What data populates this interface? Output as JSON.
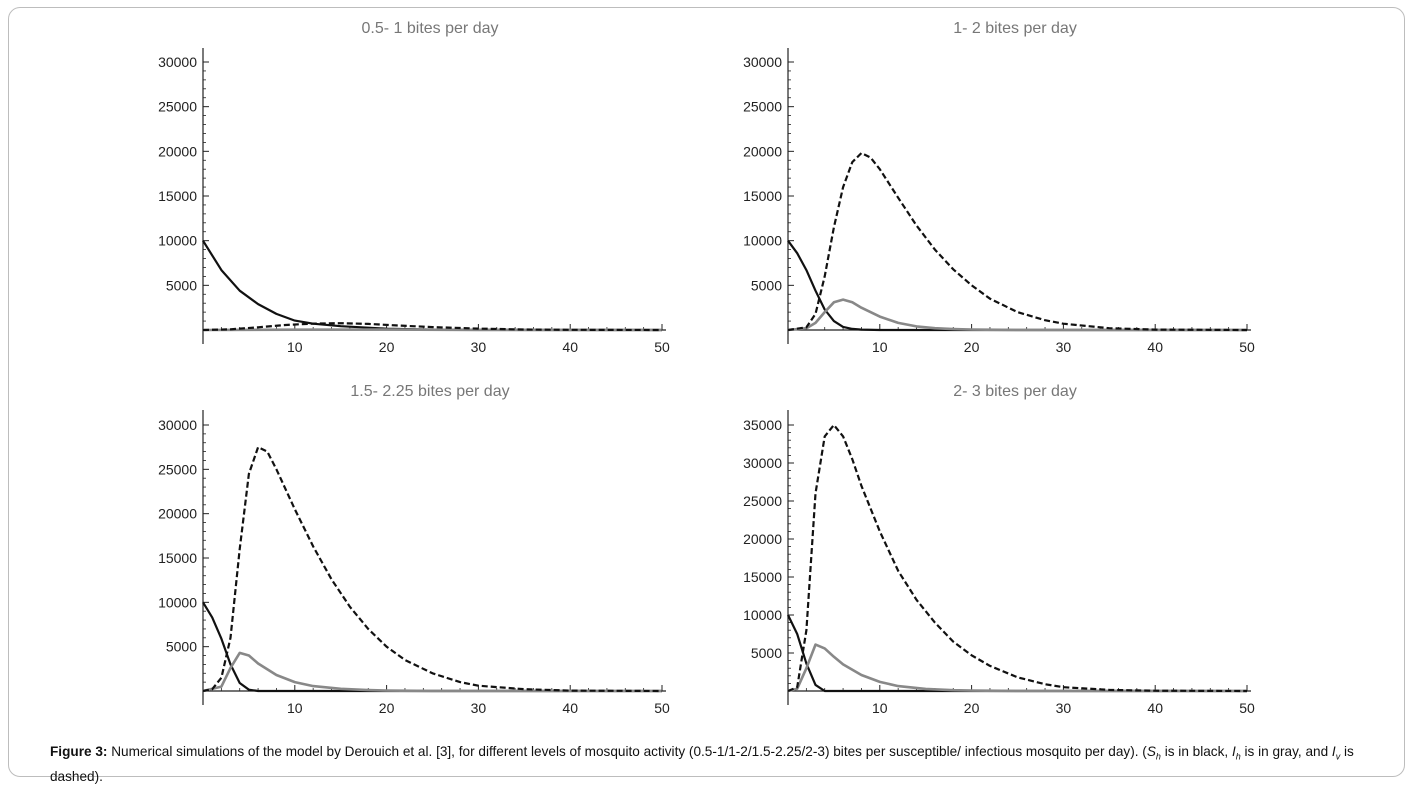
{
  "figure": {
    "caption_label": "Figure 3:",
    "caption_text": "Numerical simulations of the model by Derouich et al. [3], for different levels of mosquito activity (0.5-1/1-2/1.5-2.25/2-3) bites per susceptible/ infectious mosquito per day). (",
    "caption_sh": "S",
    "caption_sh_sub": "h",
    "caption_mid1": " is in black, ",
    "caption_ih": "I",
    "caption_ih_sub": "h",
    "caption_mid2": " is in gray, and ",
    "caption_iv": "I",
    "caption_iv_sub": "v",
    "caption_end": " is dashed).",
    "colors": {
      "S_h": "#111111",
      "I_h": "#888888",
      "I_v": "#111111",
      "axis": "#222222",
      "title": "#777777"
    }
  },
  "chart_data": [
    {
      "type": "line",
      "title": "0.5- 1 bites per day",
      "xlim": [
        0,
        50
      ],
      "ylim": [
        0,
        30000
      ],
      "xticks": [
        10,
        20,
        30,
        40,
        50
      ],
      "yticks": [
        5000,
        10000,
        15000,
        20000,
        25000,
        30000
      ],
      "series": [
        {
          "style": "solid-black",
          "x": [
            0,
            2,
            4,
            6,
            8,
            10,
            12,
            15,
            20,
            25,
            30,
            40,
            50
          ],
          "y": [
            10000,
            6700,
            4400,
            2900,
            1800,
            1050,
            700,
            420,
            150,
            50,
            20,
            0,
            0
          ]
        },
        {
          "style": "solid-gray",
          "x": [
            0,
            10,
            20,
            30,
            50
          ],
          "y": [
            0,
            30,
            40,
            10,
            0
          ]
        },
        {
          "style": "dashed-black",
          "x": [
            0,
            3,
            6,
            9,
            12,
            15,
            18,
            21,
            25,
            30,
            35,
            40,
            50
          ],
          "y": [
            0,
            80,
            300,
            560,
            720,
            760,
            680,
            520,
            330,
            160,
            60,
            20,
            0
          ]
        }
      ]
    },
    {
      "type": "line",
      "title": "1- 2 bites per day",
      "xlim": [
        0,
        50
      ],
      "ylim": [
        0,
        30000
      ],
      "xticks": [
        10,
        20,
        30,
        40,
        50
      ],
      "yticks": [
        5000,
        10000,
        15000,
        20000,
        25000,
        30000
      ],
      "series": [
        {
          "style": "solid-black",
          "x": [
            0,
            1,
            2,
            3,
            4,
            5,
            6,
            7,
            8,
            10,
            50
          ],
          "y": [
            10000,
            8600,
            6700,
            4400,
            2300,
            1000,
            350,
            120,
            40,
            0,
            0
          ]
        },
        {
          "style": "solid-gray",
          "x": [
            0,
            2,
            3,
            4,
            5,
            6,
            7,
            8,
            10,
            12,
            14,
            16,
            18,
            20,
            25,
            50
          ],
          "y": [
            0,
            200,
            800,
            2000,
            3100,
            3400,
            3100,
            2500,
            1500,
            800,
            400,
            200,
            100,
            50,
            10,
            0
          ]
        },
        {
          "style": "dashed-black",
          "x": [
            0,
            2,
            3,
            4,
            5,
            6,
            7,
            8,
            9,
            10,
            12,
            14,
            16,
            18,
            20,
            22,
            25,
            28,
            30,
            35,
            40,
            50
          ],
          "y": [
            0,
            300,
            1800,
            6000,
            11500,
            16000,
            18800,
            19800,
            19300,
            18000,
            14800,
            11700,
            9000,
            6800,
            5000,
            3500,
            2000,
            1100,
            700,
            200,
            50,
            0
          ]
        }
      ]
    },
    {
      "type": "line",
      "title": "1.5- 2.25 bites per day",
      "xlim": [
        0,
        50
      ],
      "ylim": [
        0,
        30000
      ],
      "xticks": [
        10,
        20,
        30,
        40,
        50
      ],
      "yticks": [
        5000,
        10000,
        15000,
        20000,
        25000,
        30000
      ],
      "series": [
        {
          "style": "solid-black",
          "x": [
            0,
            1,
            2,
            3,
            4,
            5,
            6,
            50
          ],
          "y": [
            10000,
            8300,
            5900,
            3000,
            900,
            150,
            0,
            0
          ]
        },
        {
          "style": "solid-gray",
          "x": [
            0,
            2,
            3,
            4,
            5,
            6,
            8,
            10,
            12,
            15,
            18,
            20,
            25,
            50
          ],
          "y": [
            0,
            500,
            2600,
            4300,
            4000,
            3100,
            1800,
            1000,
            550,
            250,
            100,
            50,
            10,
            0
          ]
        },
        {
          "style": "dashed-black",
          "x": [
            0,
            1,
            2,
            3,
            4,
            5,
            6,
            7,
            8,
            10,
            12,
            14,
            16,
            18,
            20,
            22,
            25,
            28,
            30,
            35,
            40,
            50
          ],
          "y": [
            0,
            200,
            1500,
            6000,
            16000,
            24500,
            27500,
            27000,
            25000,
            20500,
            16300,
            12600,
            9500,
            7000,
            5000,
            3500,
            2000,
            1000,
            600,
            200,
            50,
            0
          ]
        }
      ]
    },
    {
      "type": "line",
      "title": "2- 3 bites per day",
      "xlim": [
        0,
        50
      ],
      "ylim": [
        0,
        35000
      ],
      "xticks": [
        10,
        20,
        30,
        40,
        50
      ],
      "yticks": [
        5000,
        10000,
        15000,
        20000,
        25000,
        30000,
        35000
      ],
      "series": [
        {
          "style": "solid-black",
          "x": [
            0,
            1,
            2,
            3,
            4,
            50
          ],
          "y": [
            10000,
            7500,
            3600,
            800,
            0,
            0
          ]
        },
        {
          "style": "solid-gray",
          "x": [
            0,
            1,
            2,
            3,
            4,
            5,
            6,
            8,
            10,
            12,
            15,
            18,
            20,
            25,
            50
          ],
          "y": [
            0,
            300,
            3000,
            6100,
            5600,
            4500,
            3500,
            2100,
            1200,
            650,
            280,
            110,
            50,
            10,
            0
          ]
        },
        {
          "style": "dashed-black",
          "x": [
            0,
            1,
            2,
            3,
            4,
            5,
            6,
            7,
            8,
            10,
            12,
            14,
            16,
            18,
            20,
            22,
            25,
            28,
            30,
            35,
            40,
            50
          ],
          "y": [
            0,
            500,
            8000,
            26000,
            33500,
            35000,
            33500,
            30500,
            27000,
            21000,
            15800,
            12000,
            9000,
            6500,
            4700,
            3300,
            1800,
            900,
            500,
            150,
            40,
            0
          ]
        }
      ]
    }
  ]
}
